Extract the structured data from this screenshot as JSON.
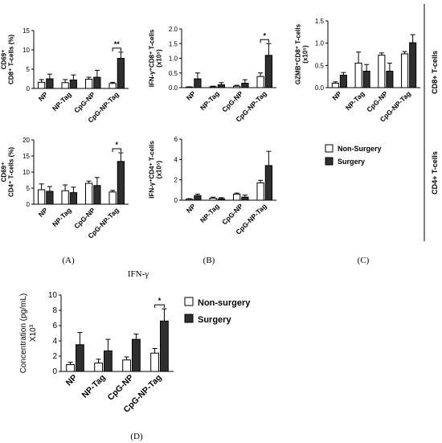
{
  "colors": {
    "non_surgery": "#ffffff",
    "surgery": "#2f2f2f",
    "axis": "#000000"
  },
  "panel_labels": {
    "A": "(A)",
    "B": "(B)",
    "C": "(C)",
    "D": "(D)"
  },
  "side_labels": {
    "cd8": "CD8+ T-cells",
    "cd4": "CD4+ T-cells"
  },
  "legend_small": {
    "non_surgery": "Non-Surgery",
    "surgery": "Surgery"
  },
  "legend_d": {
    "non_surgery": "Non-surgery",
    "surgery": "Surgery"
  },
  "title_d": "IFN-γ",
  "chart_data": [
    {
      "id": "cd69_cd8",
      "type": "bar",
      "categories": [
        "NP",
        "NP-Tag",
        "CpG-NP",
        "CpG-NP-Tag"
      ],
      "ylabel_lines": [
        "CD69⁺",
        "CD8⁺ T-cells (%)"
      ],
      "ylim": [
        0,
        15
      ],
      "yticks": [
        0,
        5,
        10,
        15
      ],
      "series": [
        {
          "name": "Non-Surgery",
          "values": [
            1.6,
            1.5,
            2.4,
            1.3
          ],
          "errors": [
            0.7,
            0.8,
            0.5,
            0.3
          ]
        },
        {
          "name": "Surgery",
          "values": [
            2.5,
            2.2,
            2.9,
            7.8
          ],
          "errors": [
            1.2,
            1.3,
            1.8,
            1.6
          ]
        }
      ],
      "significance": [
        {
          "category_index": 3,
          "label": "**"
        }
      ]
    },
    {
      "id": "ifng_cd8",
      "type": "bar",
      "categories": [
        "NP",
        "NP-Tag",
        "CpG-NP",
        "CpG-NP-Tag"
      ],
      "ylabel_lines": [
        "IFN-γ⁺CD8⁺ T-cells",
        "(x10⁵)"
      ],
      "ylim": [
        0,
        2.0
      ],
      "yticks": [
        0.0,
        0.5,
        1.0,
        1.5,
        2.0
      ],
      "series": [
        {
          "name": "Non-Surgery",
          "values": [
            0.02,
            0.03,
            0.05,
            0.38
          ],
          "errors": [
            0.01,
            0.02,
            0.03,
            0.12
          ]
        },
        {
          "name": "Surgery",
          "values": [
            0.3,
            0.1,
            0.15,
            1.1
          ],
          "errors": [
            0.2,
            0.07,
            0.12,
            0.4
          ]
        }
      ],
      "significance": [
        {
          "category_index": 3,
          "label": "*"
        }
      ]
    },
    {
      "id": "gzmb_cd8",
      "type": "bar",
      "categories": [
        "NP",
        "NP-Tag",
        "CpG-NP",
        "CpG-NP-Tag"
      ],
      "ylabel_lines": [
        "GZMB⁺CD8⁺ T-cells",
        "(x10⁵)"
      ],
      "ylim": [
        0,
        1.5
      ],
      "yticks": [
        0.0,
        0.5,
        1.0,
        1.5
      ],
      "series": [
        {
          "name": "Non-Surgery",
          "values": [
            0.1,
            0.55,
            0.73,
            0.76
          ],
          "errors": [
            0.03,
            0.25,
            0.05,
            0.05
          ]
        },
        {
          "name": "Surgery",
          "values": [
            0.28,
            0.37,
            0.37,
            1.01
          ],
          "errors": [
            0.06,
            0.15,
            0.18,
            0.18
          ]
        }
      ],
      "significance": []
    },
    {
      "id": "cd69_cd4",
      "type": "bar",
      "categories": [
        "NP",
        "NP-Tag",
        "CpG-NP",
        "CpG-NP-Tag"
      ],
      "ylabel_lines": [
        "CD69⁺",
        "CD4⁺ T-cells (%)"
      ],
      "ylim": [
        0,
        20
      ],
      "yticks": [
        0,
        5,
        10,
        15,
        20
      ],
      "series": [
        {
          "name": "Non-Surgery",
          "values": [
            4.5,
            4.2,
            6.5,
            3.8
          ],
          "errors": [
            1.8,
            1.8,
            0.7,
            0.5
          ]
        },
        {
          "name": "Surgery",
          "values": [
            4.0,
            3.6,
            5.8,
            13.3
          ],
          "errors": [
            1.5,
            1.7,
            2.5,
            2.7
          ]
        }
      ],
      "significance": [
        {
          "category_index": 3,
          "label": "*"
        }
      ]
    },
    {
      "id": "ifng_cd4",
      "type": "bar",
      "categories": [
        "NP",
        "NP-Tag",
        "CpG-NP",
        "CpG-NP-Tag"
      ],
      "ylabel_lines": [
        "IFN-γ⁺CD4⁺ T-cells",
        "(x10⁵)"
      ],
      "ylim": [
        0,
        6
      ],
      "yticks": [
        0,
        2,
        4,
        6
      ],
      "series": [
        {
          "name": "Non-Surgery",
          "values": [
            0.1,
            0.2,
            0.6,
            1.7
          ],
          "errors": [
            0.05,
            0.1,
            0.1,
            0.25
          ]
        },
        {
          "name": "Surgery",
          "values": [
            0.45,
            0.15,
            0.3,
            3.4
          ],
          "errors": [
            0.15,
            0.1,
            0.2,
            1.4
          ]
        }
      ],
      "significance": []
    },
    {
      "id": "ifng_conc",
      "type": "bar",
      "categories": [
        "NP",
        "NP-Tag",
        "CpG-NP",
        "CpG-NP-Tag"
      ],
      "ylabel_lines": [
        "Concentration (pg/mL)",
        "X10³"
      ],
      "ylim": [
        0,
        10
      ],
      "yticks": [
        0,
        2,
        4,
        6,
        8,
        10
      ],
      "series": [
        {
          "name": "Non-surgery",
          "values": [
            0.9,
            1.1,
            1.5,
            2.4
          ],
          "errors": [
            0.3,
            0.5,
            0.4,
            0.6
          ]
        },
        {
          "name": "Surgery",
          "values": [
            3.5,
            2.7,
            4.2,
            6.6
          ],
          "errors": [
            1.6,
            1.5,
            0.7,
            1.6
          ]
        }
      ],
      "significance": [
        {
          "category_index": 3,
          "label": "*"
        }
      ]
    }
  ]
}
